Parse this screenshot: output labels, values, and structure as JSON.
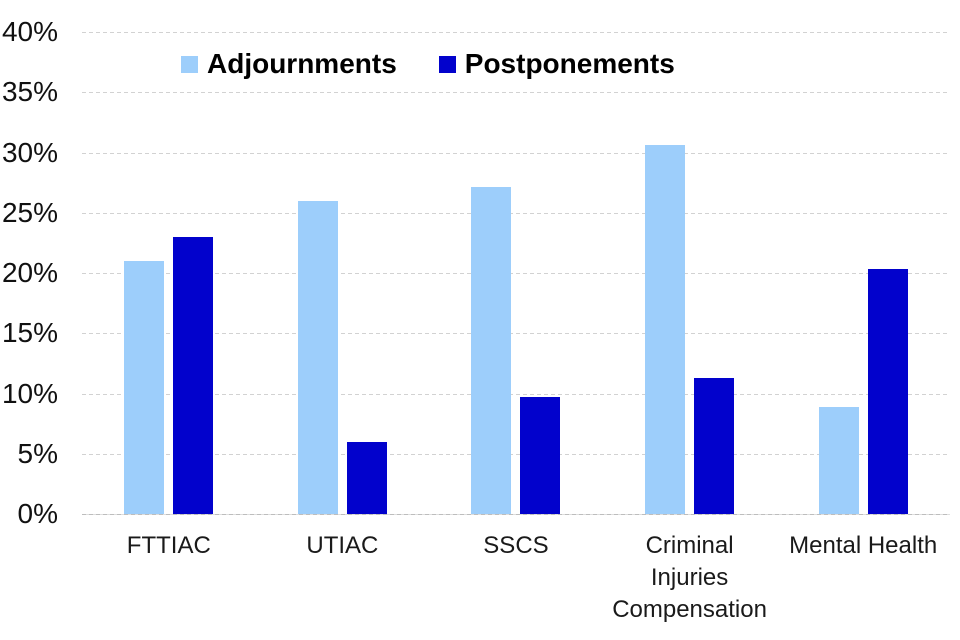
{
  "chart_data": {
    "type": "bar",
    "title": "",
    "categories": [
      "FTTIAC",
      "UTIAC",
      "SSCS",
      "Criminal Injuries Compensation",
      "Mental Health"
    ],
    "series": [
      {
        "name": "Adjournments",
        "color": "#9DCEFB",
        "values": [
          21.0,
          26.0,
          27.1,
          30.6,
          8.9
        ]
      },
      {
        "name": "Postponements",
        "color": "#0202CC",
        "values": [
          23.0,
          6.0,
          9.7,
          11.3,
          20.3
        ]
      }
    ],
    "xlabel": "",
    "ylabel": "",
    "ylim": [
      0,
      40
    ],
    "y_tick_step": 5,
    "y_tick_labels": [
      "0%",
      "5%",
      "10%",
      "15%",
      "20%",
      "25%",
      "30%",
      "35%",
      "40%"
    ],
    "grid": true,
    "gridline_color": "#d2d2d2",
    "legend_position": "top-left-inside",
    "background_color": "#ffffff"
  }
}
